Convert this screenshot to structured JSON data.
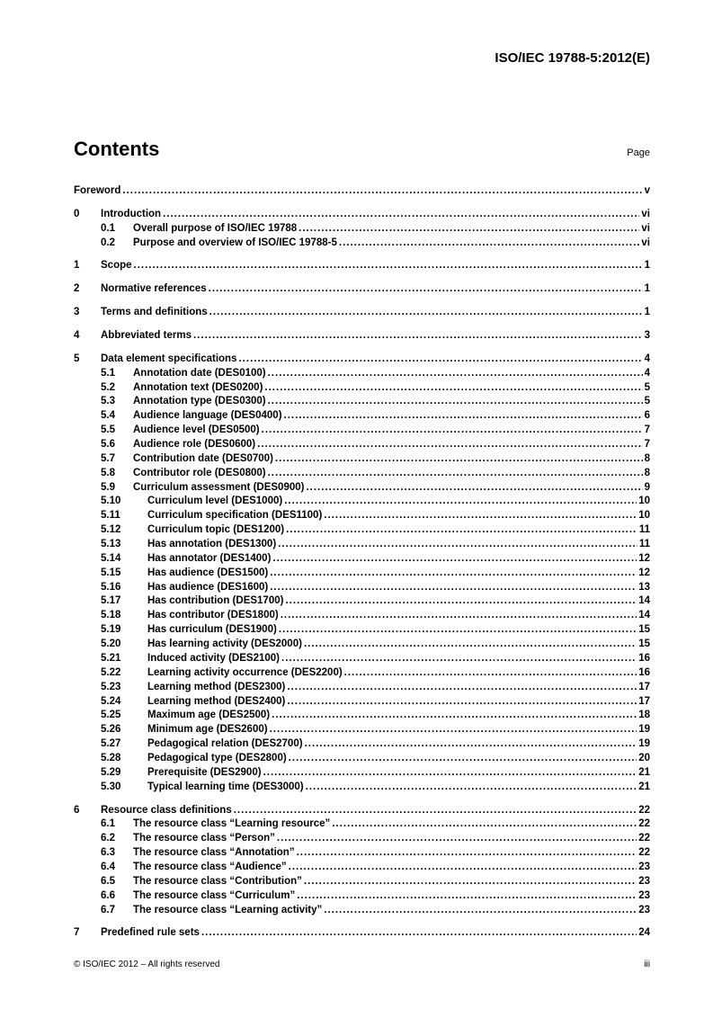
{
  "header": {
    "doc_ref": "ISO/IEC 19788-5:2012(E)"
  },
  "title": "Contents",
  "page_label": "Page",
  "footer": {
    "left": "© ISO/IEC 2012 – All rights reserved",
    "right": "iii"
  },
  "groups": [
    {
      "entries": [
        {
          "level": "level0",
          "num": "",
          "text": "Foreword ",
          "page": "v"
        }
      ]
    },
    {
      "entries": [
        {
          "level": "level1",
          "num": "0",
          "text": "Introduction ",
          "page": "vi"
        },
        {
          "level": "level2",
          "num": "0.1",
          "text": "Overall purpose of ISO/IEC 19788 ",
          "page": "vi"
        },
        {
          "level": "level2",
          "num": "0.2",
          "text": "Purpose and overview of ISO/IEC 19788-5 ",
          "page": "vi"
        }
      ]
    },
    {
      "entries": [
        {
          "level": "level1",
          "num": "1",
          "text": "Scope",
          "page": "1"
        }
      ]
    },
    {
      "entries": [
        {
          "level": "level1",
          "num": "2",
          "text": "Normative references",
          "page": "1"
        }
      ]
    },
    {
      "entries": [
        {
          "level": "level1",
          "num": "3",
          "text": "Terms and definitions",
          "page": "1"
        }
      ]
    },
    {
      "entries": [
        {
          "level": "level1",
          "num": "4",
          "text": "Abbreviated terms",
          "page": "3"
        }
      ]
    },
    {
      "entries": [
        {
          "level": "level1",
          "num": "5",
          "text": "Data element specifications",
          "page": "4"
        },
        {
          "level": "level2",
          "num": "5.1",
          "text": "Annotation date (DES0100) ",
          "page": "4"
        },
        {
          "level": "level2",
          "num": "5.2",
          "text": "Annotation text (DES0200) ",
          "page": "5"
        },
        {
          "level": "level2",
          "num": "5.3",
          "text": "Annotation type (DES0300) ",
          "page": "5"
        },
        {
          "level": "level2",
          "num": "5.4",
          "text": "Audience language (DES0400)",
          "page": "6"
        },
        {
          "level": "level2",
          "num": "5.5",
          "text": "Audience level (DES0500) ",
          "page": "7"
        },
        {
          "level": "level2",
          "num": "5.6",
          "text": "Audience role (DES0600)",
          "page": "7"
        },
        {
          "level": "level2",
          "num": "5.7",
          "text": "Contribution date (DES0700)",
          "page": "8"
        },
        {
          "level": "level2",
          "num": "5.8",
          "text": "Contributor role (DES0800) ",
          "page": "8"
        },
        {
          "level": "level2",
          "num": "5.9",
          "text": "Curriculum assessment (DES0900)",
          "page": "9"
        },
        {
          "level": "level2b",
          "num": "5.10",
          "text": "Curriculum level (DES1000) ",
          "page": "10"
        },
        {
          "level": "level2b",
          "num": "5.11",
          "text": "Curriculum specification (DES1100) ",
          "page": "10"
        },
        {
          "level": "level2b",
          "num": "5.12",
          "text": "Curriculum topic (DES1200)",
          "page": "11"
        },
        {
          "level": "level2b",
          "num": "5.13",
          "text": "Has annotation (DES1300) ",
          "page": "11"
        },
        {
          "level": "level2b",
          "num": "5.14",
          "text": "Has annotator (DES1400) ",
          "page": "12"
        },
        {
          "level": "level2b",
          "num": "5.15",
          "text": "Has audience (DES1500) ",
          "page": "12"
        },
        {
          "level": "level2b",
          "num": "5.16",
          "text": "Has audience (DES1600) ",
          "page": "13"
        },
        {
          "level": "level2b",
          "num": "5.17",
          "text": "Has contribution (DES1700)",
          "page": "14"
        },
        {
          "level": "level2b",
          "num": "5.18",
          "text": "Has contributor (DES1800)",
          "page": "14"
        },
        {
          "level": "level2b",
          "num": "5.19",
          "text": "Has curriculum (DES1900) ",
          "page": "15"
        },
        {
          "level": "level2b",
          "num": "5.20",
          "text": "Has learning activity  (DES2000) ",
          "page": "15"
        },
        {
          "level": "level2b",
          "num": "5.21",
          "text": "Induced activity (DES2100) ",
          "page": "16"
        },
        {
          "level": "level2b",
          "num": "5.22",
          "text": "Learning activity occurrence (DES2200) ",
          "page": "16"
        },
        {
          "level": "level2b",
          "num": "5.23",
          "text": "Learning method (DES2300) ",
          "page": "17"
        },
        {
          "level": "level2b",
          "num": "5.24",
          "text": "Learning method (DES2400) ",
          "page": "17"
        },
        {
          "level": "level2b",
          "num": "5.25",
          "text": "Maximum age (DES2500)",
          "page": "18"
        },
        {
          "level": "level2b",
          "num": "5.26",
          "text": "Minimum age (DES2600) ",
          "page": "19"
        },
        {
          "level": "level2b",
          "num": "5.27",
          "text": "Pedagogical relation (DES2700) ",
          "page": "19"
        },
        {
          "level": "level2b",
          "num": "5.28",
          "text": "Pedagogical type (DES2800)",
          "page": "20"
        },
        {
          "level": "level2b",
          "num": "5.29",
          "text": "Prerequisite (DES2900)",
          "page": "21"
        },
        {
          "level": "level2b",
          "num": "5.30",
          "text": "Typical learning time (DES3000) ",
          "page": "21"
        }
      ]
    },
    {
      "entries": [
        {
          "level": "level1",
          "num": "6",
          "text": "Resource class definitions",
          "page": "22"
        },
        {
          "level": "level2",
          "num": "6.1",
          "text": "The resource class \"Learning resource\"",
          "page": "22"
        },
        {
          "level": "level2",
          "num": "6.2",
          "text": "The resource class \"Person\"",
          "page": "22"
        },
        {
          "level": "level2",
          "num": "6.3",
          "text": "The resource class \"Annotation\" ",
          "page": "22"
        },
        {
          "level": "level2",
          "num": "6.4",
          "text": "The resource class \"Audience\" ",
          "page": "23"
        },
        {
          "level": "level2",
          "num": "6.5",
          "text": "The resource class \"Contribution\"",
          "page": "23"
        },
        {
          "level": "level2",
          "num": "6.6",
          "text": "The resource class \"Curriculum\" ",
          "page": "23"
        },
        {
          "level": "level2",
          "num": "6.7",
          "text": "The resource class \"Learning activity\"",
          "page": "23"
        }
      ]
    },
    {
      "entries": [
        {
          "level": "level1",
          "num": "7",
          "text": "Predefined rule sets",
          "page": "24"
        }
      ]
    }
  ]
}
